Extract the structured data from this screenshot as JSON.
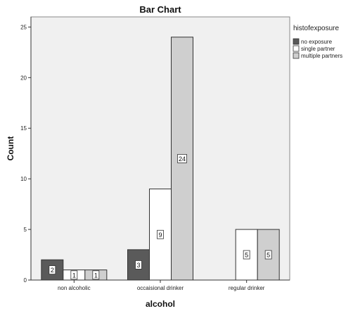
{
  "chart_data": {
    "type": "bar",
    "title": "Bar Chart",
    "xlabel": "alcohol",
    "ylabel": "Count",
    "categories": [
      "non alcoholic",
      "occaisional drinker",
      "regular drinker"
    ],
    "legend_title": "histofexposure",
    "legend_position": "right",
    "series": [
      {
        "name": "no exposure",
        "values": [
          2,
          3,
          0
        ],
        "color": "#5a5a5a"
      },
      {
        "name": "single partner",
        "values": [
          1,
          9,
          5
        ],
        "color": "#ffffff"
      },
      {
        "name": "multiple partners",
        "values": [
          1,
          24,
          5
        ],
        "color": "#cfcfcf"
      }
    ],
    "data_labels": [
      [
        "2",
        "3",
        null
      ],
      [
        "1",
        "9",
        "5"
      ],
      [
        "1",
        "24",
        "5"
      ]
    ],
    "ylim": [
      0,
      26
    ],
    "yticks": [
      0,
      5,
      10,
      15,
      20,
      25
    ],
    "ytick_labels": [
      "0",
      "5",
      "10",
      "15",
      "20",
      "25"
    ],
    "grid": false,
    "plot_background": "#f0f0f0"
  }
}
